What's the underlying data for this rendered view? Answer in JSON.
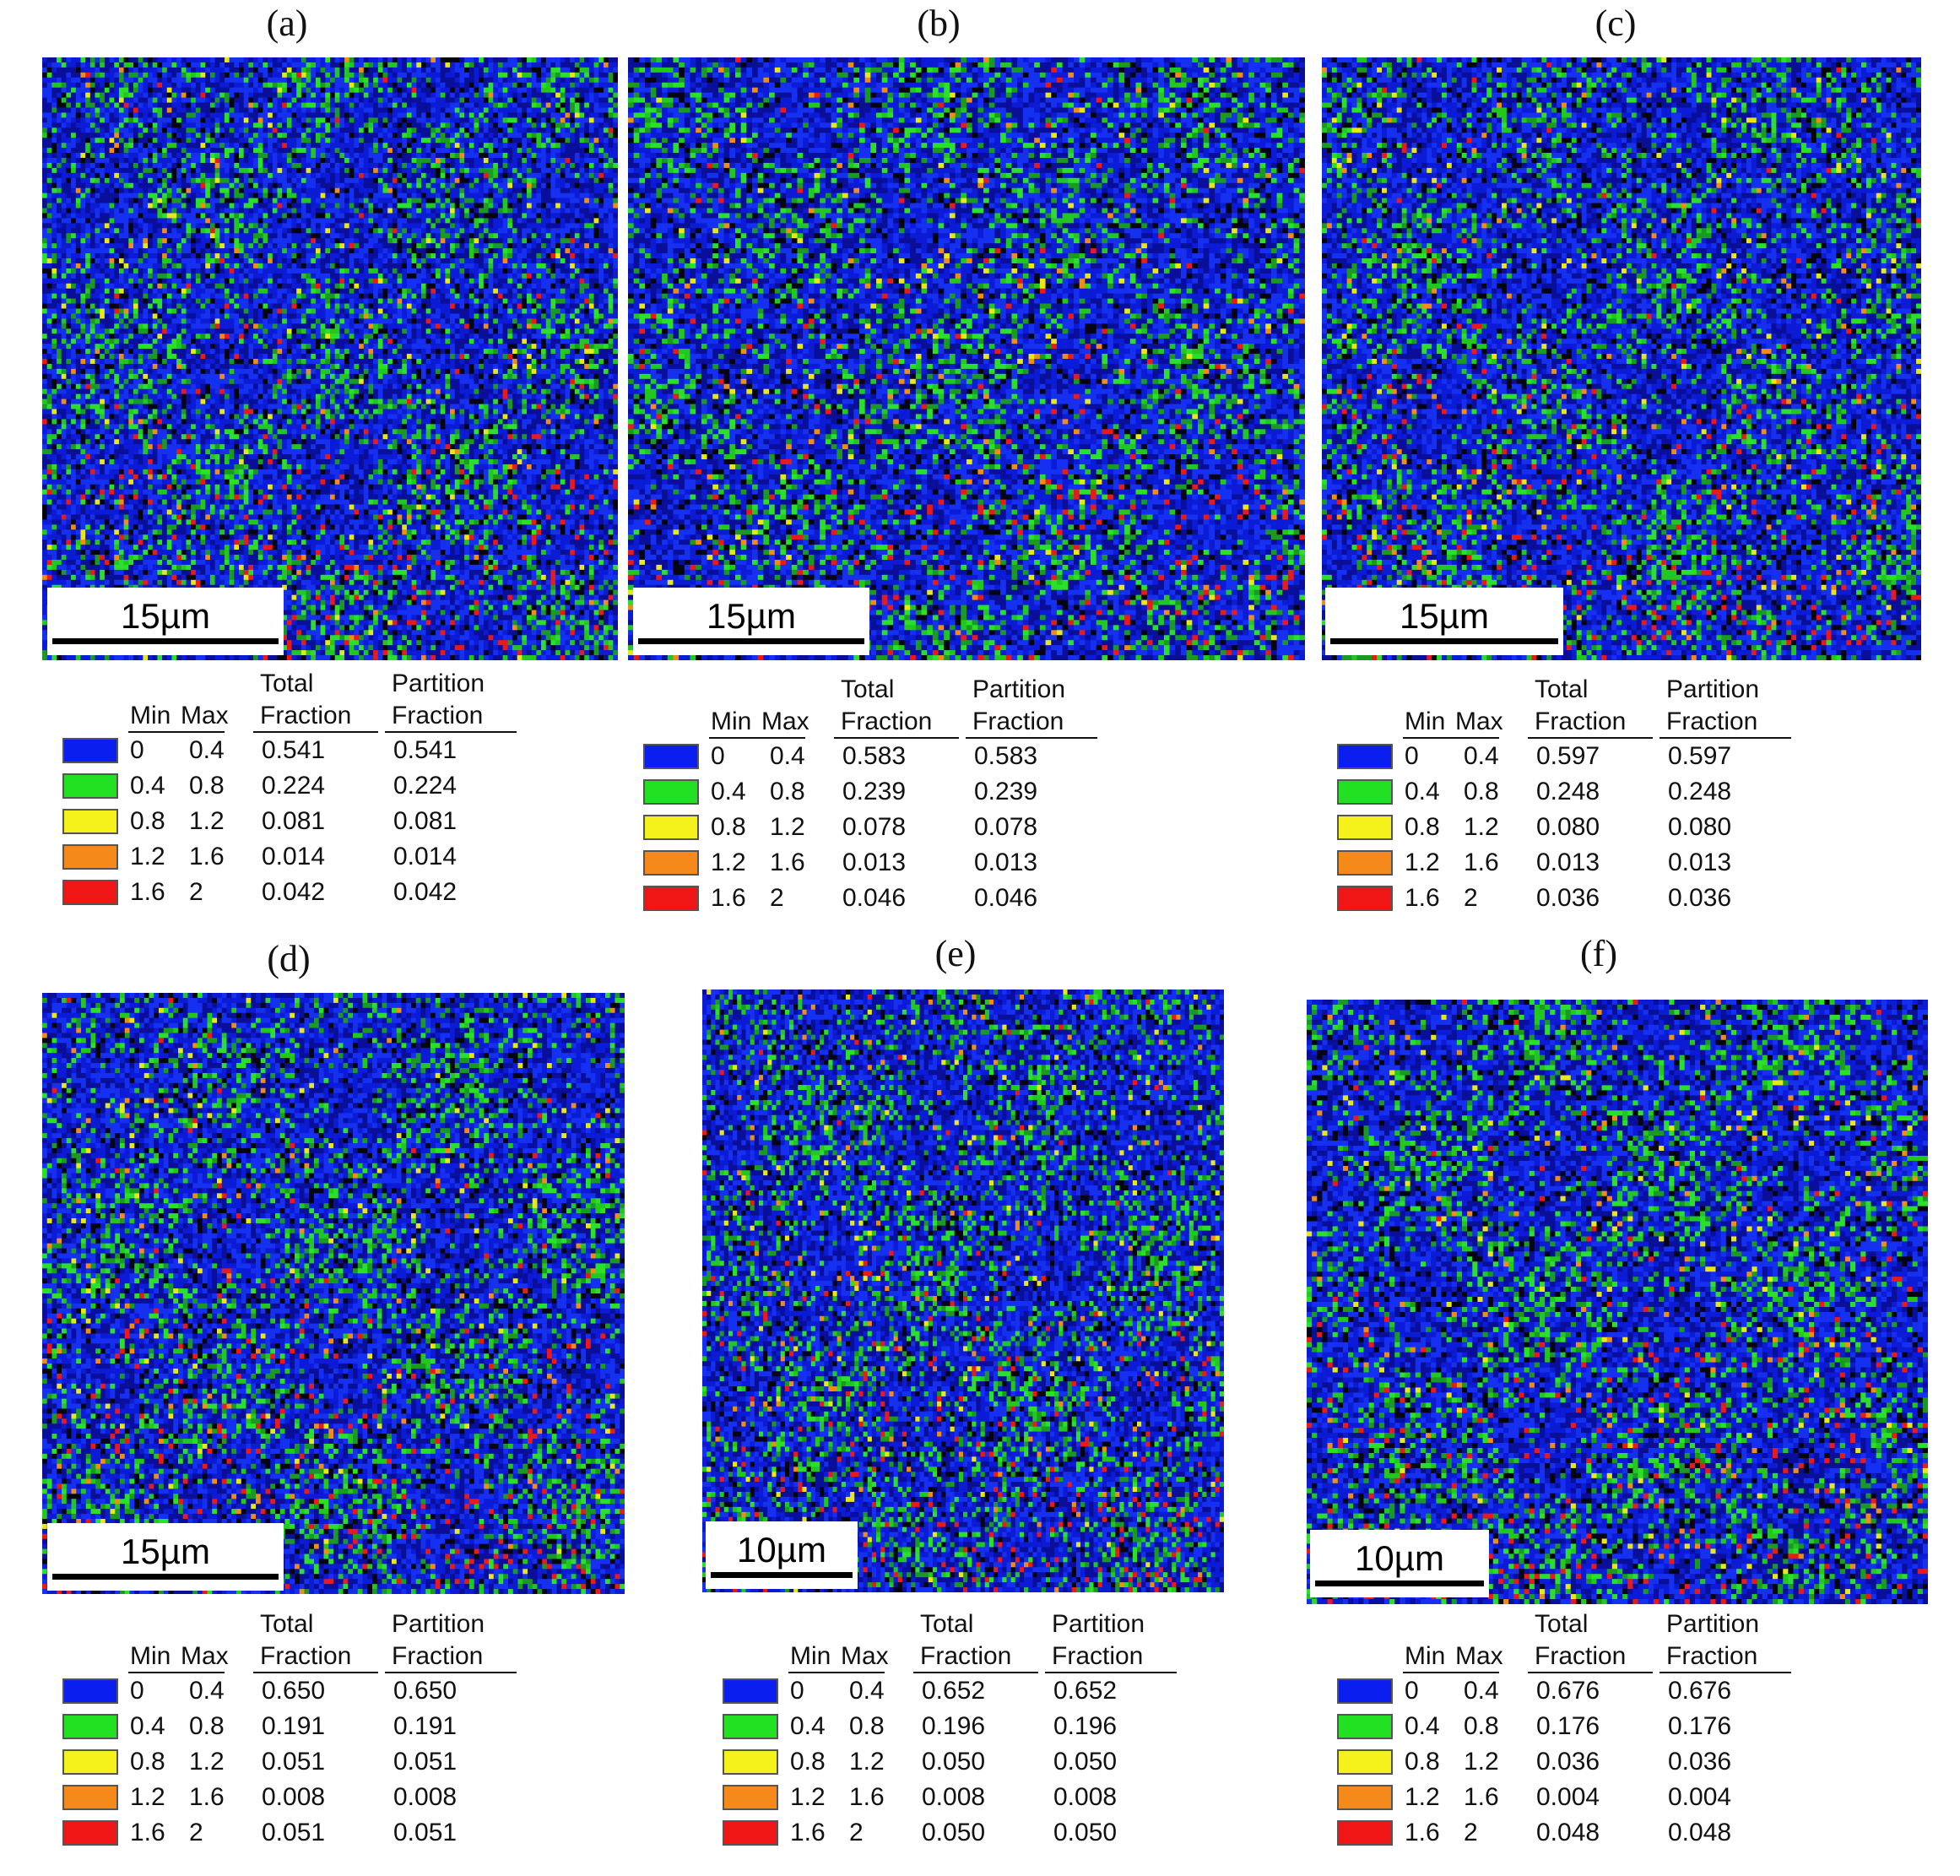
{
  "legend_headers": {
    "min": "Min",
    "max": "Max",
    "total_1": "Total",
    "total_2": "Fraction",
    "partition_1": "Partition",
    "partition_2": "Fraction"
  },
  "legend_colors": [
    "#0a1ef0",
    "#22e022",
    "#f4f21a",
    "#f58a1a",
    "#f01616"
  ],
  "panels": [
    {
      "label": "(a)",
      "scale_bar": "15µm",
      "rows": [
        {
          "min": "0",
          "max": "0.4",
          "total": "0.541",
          "partition": "0.541"
        },
        {
          "min": "0.4",
          "max": "0.8",
          "total": "0.224",
          "partition": "0.224"
        },
        {
          "min": "0.8",
          "max": "1.2",
          "total": "0.081",
          "partition": "0.081"
        },
        {
          "min": "1.2",
          "max": "1.6",
          "total": "0.014",
          "partition": "0.014"
        },
        {
          "min": "1.6",
          "max": "2",
          "total": "0.042",
          "partition": "0.042"
        }
      ]
    },
    {
      "label": "(b)",
      "scale_bar": "15µm",
      "rows": [
        {
          "min": "0",
          "max": "0.4",
          "total": "0.583",
          "partition": "0.583"
        },
        {
          "min": "0.4",
          "max": "0.8",
          "total": "0.239",
          "partition": "0.239"
        },
        {
          "min": "0.8",
          "max": "1.2",
          "total": "0.078",
          "partition": "0.078"
        },
        {
          "min": "1.2",
          "max": "1.6",
          "total": "0.013",
          "partition": "0.013"
        },
        {
          "min": "1.6",
          "max": "2",
          "total": "0.046",
          "partition": "0.046"
        }
      ]
    },
    {
      "label": "(c)",
      "scale_bar": "15µm",
      "rows": [
        {
          "min": "0",
          "max": "0.4",
          "total": "0.597",
          "partition": "0.597"
        },
        {
          "min": "0.4",
          "max": "0.8",
          "total": "0.248",
          "partition": "0.248"
        },
        {
          "min": "0.8",
          "max": "1.2",
          "total": "0.080",
          "partition": "0.080"
        },
        {
          "min": "1.2",
          "max": "1.6",
          "total": "0.013",
          "partition": "0.013"
        },
        {
          "min": "1.6",
          "max": "2",
          "total": "0.036",
          "partition": "0.036"
        }
      ]
    },
    {
      "label": "(d)",
      "scale_bar": "15µm",
      "rows": [
        {
          "min": "0",
          "max": "0.4",
          "total": "0.650",
          "partition": "0.650"
        },
        {
          "min": "0.4",
          "max": "0.8",
          "total": "0.191",
          "partition": "0.191"
        },
        {
          "min": "0.8",
          "max": "1.2",
          "total": "0.051",
          "partition": "0.051"
        },
        {
          "min": "1.2",
          "max": "1.6",
          "total": "0.008",
          "partition": "0.008"
        },
        {
          "min": "1.6",
          "max": "2",
          "total": "0.051",
          "partition": "0.051"
        }
      ]
    },
    {
      "label": "(e)",
      "scale_bar": "10µm",
      "rows": [
        {
          "min": "0",
          "max": "0.4",
          "total": "0.652",
          "partition": "0.652"
        },
        {
          "min": "0.4",
          "max": "0.8",
          "total": "0.196",
          "partition": "0.196"
        },
        {
          "min": "0.8",
          "max": "1.2",
          "total": "0.050",
          "partition": "0.050"
        },
        {
          "min": "1.2",
          "max": "1.6",
          "total": "0.008",
          "partition": "0.008"
        },
        {
          "min": "1.6",
          "max": "2",
          "total": "0.050",
          "partition": "0.050"
        }
      ]
    },
    {
      "label": "(f)",
      "scale_bar": "10µm",
      "rows": [
        {
          "min": "0",
          "max": "0.4",
          "total": "0.676",
          "partition": "0.676"
        },
        {
          "min": "0.4",
          "max": "0.8",
          "total": "0.176",
          "partition": "0.176"
        },
        {
          "min": "0.8",
          "max": "1.2",
          "total": "0.036",
          "partition": "0.036"
        },
        {
          "min": "1.2",
          "max": "1.6",
          "total": "0.004",
          "partition": "0.004"
        },
        {
          "min": "1.6",
          "max": "2",
          "total": "0.048",
          "partition": "0.048"
        }
      ]
    }
  ]
}
